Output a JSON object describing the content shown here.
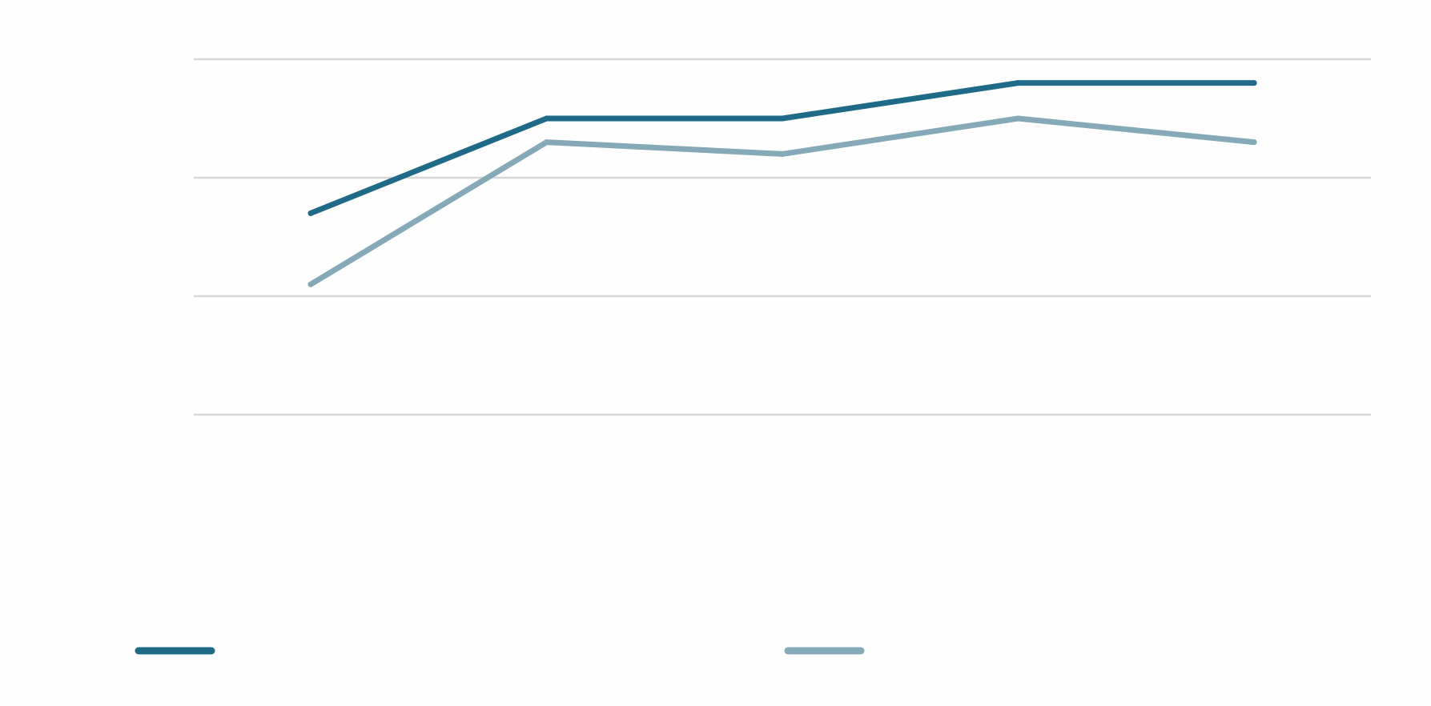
{
  "colors": {
    "background": "#fefefe",
    "gridline": "#d6d6d6"
  },
  "chart_data": {
    "type": "line",
    "title": "",
    "xlabel": "",
    "ylabel": "",
    "x_count": 5,
    "ylim": [
      0,
      3
    ],
    "grid": true,
    "gridlines": [
      0,
      1,
      2,
      3
    ],
    "legend": "bottom",
    "series": [
      {
        "name": "",
        "color": "#1f6b87",
        "values": [
          1.7,
          2.5,
          2.5,
          2.8,
          2.8
        ]
      },
      {
        "name": "",
        "color": "#86a9b8",
        "values": [
          1.1,
          2.3,
          2.2,
          2.5,
          2.3
        ]
      }
    ]
  }
}
